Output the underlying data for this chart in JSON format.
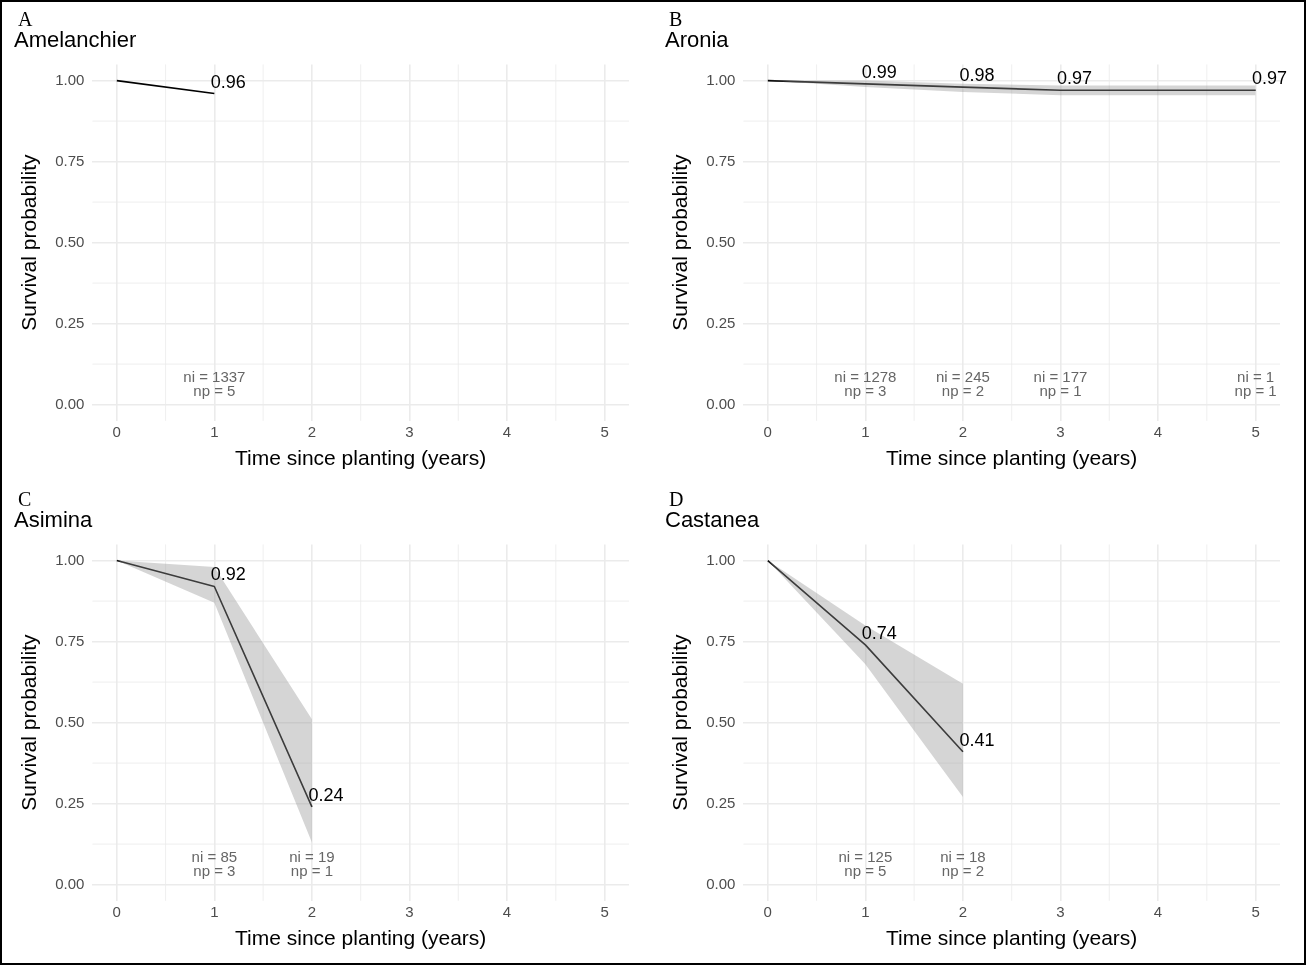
{
  "chart_data": [
    {
      "type": "line",
      "title": "Amelanchier",
      "xlabel": "Time since planting (years)",
      "ylabel": "Survival probability",
      "x": [
        0,
        1
      ],
      "xlim": [
        -0.25,
        5.25
      ],
      "xticks": [
        0,
        1,
        2,
        3,
        4,
        5
      ],
      "ylim": [
        -0.05,
        1.05
      ],
      "yticks": [
        {
          "value": 0,
          "label": "0.00"
        },
        {
          "value": 0.25,
          "label": "0.25"
        },
        {
          "value": 0.5,
          "label": "0.50"
        },
        {
          "value": 0.75,
          "label": "0.75"
        },
        {
          "value": 1,
          "label": "1.00"
        }
      ],
      "grid": true,
      "legend": false,
      "marker": "none",
      "line_style": "solid",
      "series": [
        {
          "color": "#000000",
          "values": [
            1,
            0.96
          ],
          "value_labels": [
            null,
            "0.96"
          ]
        }
      ],
      "annotations": [
        "A",
        "ni = 1337\nnp = 5"
      ]
    },
    {
      "type": "line",
      "title": "Aronia",
      "xlabel": "Time since planting (years)",
      "ylabel": "Survival probability",
      "x": [
        0,
        1,
        2,
        3,
        5
      ],
      "xlim": [
        -0.25,
        5.25
      ],
      "xticks": [
        0,
        1,
        2,
        3,
        4,
        5
      ],
      "ylim": [
        -0.05,
        1.05
      ],
      "yticks": [
        {
          "value": 0,
          "label": "0.00"
        },
        {
          "value": 0.25,
          "label": "0.25"
        },
        {
          "value": 0.5,
          "label": "0.50"
        },
        {
          "value": 0.75,
          "label": "0.75"
        },
        {
          "value": 1,
          "label": "1.00"
        }
      ],
      "grid": true,
      "legend": false,
      "marker": "none",
      "line_style": "solid",
      "series": [
        {
          "color": "#000000",
          "values": [
            1,
            0.99,
            0.98,
            0.97,
            0.97
          ],
          "lower": [
            1,
            0.98,
            0.965,
            0.955,
            0.955
          ],
          "upper": [
            1,
            1,
            0.99,
            0.985,
            0.985
          ],
          "value_labels": [
            null,
            "0.99",
            "0.98",
            "0.97",
            "0.97"
          ]
        }
      ],
      "annotations": [
        "B",
        "ni = 1278\nnp = 3",
        "ni = 245\nnp = 2",
        "ni = 177\nnp = 1",
        "ni = 1\nnp = 1"
      ]
    },
    {
      "type": "line",
      "title": "Asimina",
      "xlabel": "Time since planting (years)",
      "ylabel": "Survival probability",
      "x": [
        0,
        1,
        2
      ],
      "xlim": [
        -0.25,
        5.25
      ],
      "xticks": [
        0,
        1,
        2,
        3,
        4,
        5
      ],
      "ylim": [
        -0.05,
        1.05
      ],
      "yticks": [
        {
          "value": 0,
          "label": "0.00"
        },
        {
          "value": 0.25,
          "label": "0.25"
        },
        {
          "value": 0.5,
          "label": "0.50"
        },
        {
          "value": 0.75,
          "label": "0.75"
        },
        {
          "value": 1,
          "label": "1.00"
        }
      ],
      "grid": true,
      "legend": false,
      "marker": "none",
      "line_style": "solid",
      "series": [
        {
          "color": "#000000",
          "values": [
            1,
            0.92,
            0.24
          ],
          "lower": [
            1,
            0.87,
            0.13
          ],
          "upper": [
            1,
            0.98,
            0.51
          ],
          "value_labels": [
            null,
            "0.92",
            "0.24"
          ]
        }
      ],
      "annotations": [
        "C",
        "ni = 85\nnp = 3",
        "ni = 19\nnp = 1"
      ]
    },
    {
      "type": "line",
      "title": "Castanea",
      "xlabel": "Time since planting (years)",
      "ylabel": "Survival probability",
      "x": [
        0,
        1,
        2
      ],
      "xlim": [
        -0.25,
        5.25
      ],
      "xticks": [
        0,
        1,
        2,
        3,
        4,
        5
      ],
      "ylim": [
        -0.05,
        1.05
      ],
      "yticks": [
        {
          "value": 0,
          "label": "0.00"
        },
        {
          "value": 0.25,
          "label": "0.25"
        },
        {
          "value": 0.5,
          "label": "0.50"
        },
        {
          "value": 0.75,
          "label": "0.75"
        },
        {
          "value": 1,
          "label": "1.00"
        }
      ],
      "grid": true,
      "legend": false,
      "marker": "none",
      "line_style": "solid",
      "series": [
        {
          "color": "#000000",
          "values": [
            1,
            0.74,
            0.41
          ],
          "lower": [
            1,
            0.68,
            0.27
          ],
          "upper": [
            1,
            0.8,
            0.62
          ],
          "value_labels": [
            null,
            "0.74",
            "0.41"
          ]
        }
      ],
      "annotations": [
        "D",
        "ni = 125\nnp = 5",
        "ni = 18\nnp = 2"
      ]
    }
  ]
}
